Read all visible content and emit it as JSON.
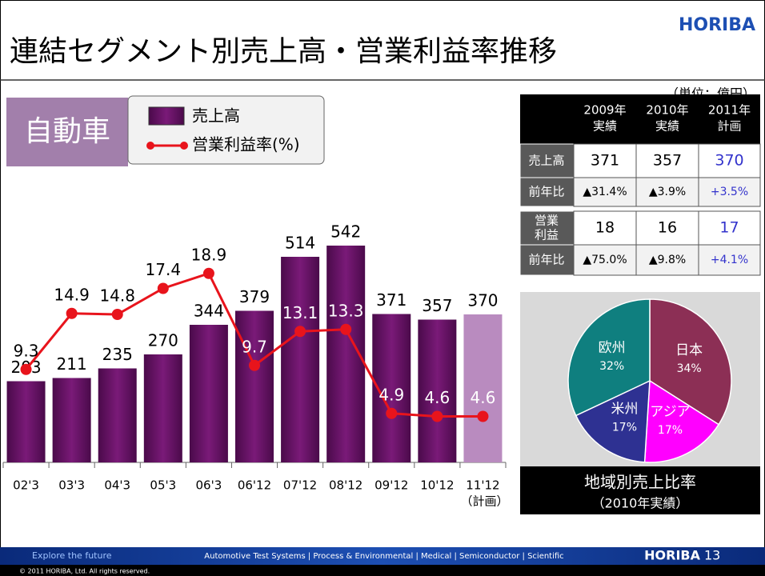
{
  "header": {
    "title": "連結セグメント別売上高・営業利益率推移",
    "logo": "HORIBA",
    "unit": "（単位：億円）"
  },
  "segment": "自動車",
  "chart_data": [
    {
      "type": "combo",
      "categories": [
        "02'3",
        "03'3",
        "04'3",
        "05'3",
        "06'3",
        "06'12",
        "07'12",
        "08'12",
        "09'12",
        "10'12",
        "11'12"
      ],
      "plan_note": "（計画）",
      "series": [
        {
          "name": "売上高",
          "type": "bar",
          "color": "#6a1068",
          "plan_color": "#b98bbf",
          "values": [
            203,
            211,
            235,
            270,
            344,
            379,
            514,
            542,
            371,
            357,
            370
          ]
        },
        {
          "name": "営業利益率(%)",
          "type": "line",
          "axis": "y2",
          "color": "#e8141c",
          "values": [
            9.3,
            14.9,
            14.8,
            17.4,
            18.9,
            9.7,
            13.1,
            13.3,
            4.9,
            4.6,
            4.6
          ]
        }
      ],
      "ylim": [
        0,
        600
      ],
      "y2lim": [
        0,
        24
      ]
    },
    {
      "type": "pie",
      "title": "地域別売上比率",
      "subtitle": "（2010年実績）",
      "categories": [
        "日本",
        "アジア",
        "米州",
        "欧州"
      ],
      "values": [
        34,
        17,
        17,
        32
      ],
      "value_labels": [
        "34%",
        "17%",
        "17%",
        "32%"
      ],
      "colors": [
        "#8c2f55",
        "#ff00ff",
        "#2e3192",
        "#0f7f7f"
      ]
    }
  ],
  "table": {
    "columns": [
      [
        "2009年",
        "実績"
      ],
      [
        "2010年",
        "実績"
      ],
      [
        "2011年",
        "計画"
      ]
    ],
    "rows": [
      {
        "label": [
          "売上高"
        ],
        "cells": [
          "371",
          "357",
          "370"
        ]
      },
      {
        "label": [
          "前年比"
        ],
        "cells": [
          "▲31.4%",
          "▲3.9%",
          "+3.5%"
        ]
      },
      {
        "label": [
          "営業",
          "利益"
        ],
        "cells": [
          "18",
          "16",
          "17"
        ]
      },
      {
        "label": [
          "前年比"
        ],
        "cells": [
          "▲75.0%",
          "▲9.8%",
          "+4.1%"
        ]
      }
    ]
  },
  "footer": {
    "tagline": "Explore the future",
    "businesses": "Automotive Test Systems | Process & Environmental | Medical | Semiconductor | Scientific",
    "logo": "HORIBA",
    "page": "13",
    "copyright": "© 2011 HORIBA, Ltd. All rights reserved."
  }
}
